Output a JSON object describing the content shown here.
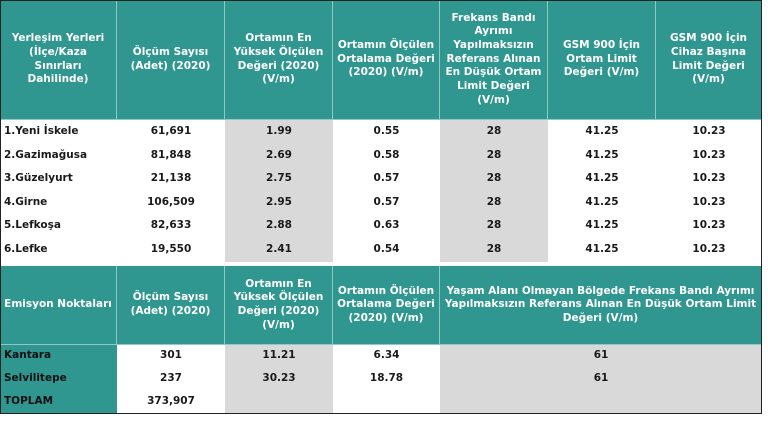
{
  "table1": {
    "header": [
      "Yerleşim Yerleri (İlçe/Kaza Sınırları Dahilinde)",
      "Ölçüm Sayısı (Adet) (2020)",
      "Ortamın En Yüksek Ölçülen Değeri (2020) (V/m)",
      "Ortamın Ölçülen Ortalama Değeri (2020) (V/m)",
      "Frekans Bandı Ayrımı Yapılmaksızın Referans Alınan En Düşük Ortam Limit Değeri (V/m)",
      "GSM 900 İçin Ortam Limit Değeri (V/m)",
      "GSM 900 İçin Cihaz Başına Limit Değeri (V/m)"
    ],
    "rows": [
      [
        "1.Yeni İskele",
        "61,691",
        "1.99",
        "0.55",
        "28",
        "41.25",
        "10.23"
      ],
      [
        "2.Gazimağusa",
        "81,848",
        "2.69",
        "0.58",
        "28",
        "41.25",
        "10.23"
      ],
      [
        "3.Güzelyurt",
        "21,138",
        "2.75",
        "0.57",
        "28",
        "41.25",
        "10.23"
      ],
      [
        "4.Girne",
        "106,509",
        "2.95",
        "0.57",
        "28",
        "41.25",
        "10.23"
      ],
      [
        "5.Lefkoşa",
        "82,633",
        "2.88",
        "0.63",
        "28",
        "41.25",
        "10.23"
      ],
      [
        "6.Lefke",
        "19,550",
        "2.41",
        "0.54",
        "28",
        "41.25",
        "10.23"
      ]
    ]
  },
  "table2": {
    "header": [
      "Emisyon Noktaları",
      "Ölçüm Sayısı (Adet) (2020)",
      "Ortamın En Yüksek Ölçülen Değeri (2020) (V/m)",
      "Ortamın Ölçülen Ortalama Değeri (2020) (V/m)",
      "Yaşam Alanı Olmayan Bölgede Frekans Bandı Ayrımı Yapılmaksızın Referans Alınan En Düşük Ortam Limit Değeri (V/m)"
    ],
    "rows": [
      [
        "Kantara",
        "301",
        "11.21",
        "6.34",
        "61"
      ],
      [
        "Selvilitepe",
        "237",
        "30.23",
        "18.78",
        "61"
      ],
      [
        "TOPLAM",
        "373,907"
      ]
    ]
  }
}
